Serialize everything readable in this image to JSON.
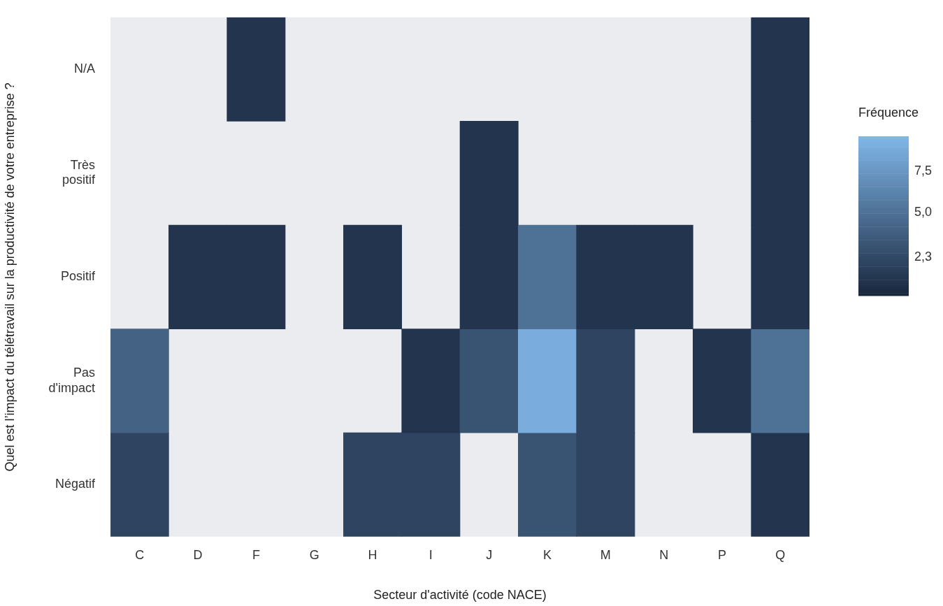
{
  "chart_data": {
    "type": "heatmap",
    "xlabel": "Secteur d'activité (code NACE)",
    "ylabel": "Quel est l’impact du télétravail sur la productivité de votre entreprise ?",
    "legend_title": "Fréquence",
    "categories": [
      "C",
      "D",
      "F",
      "G",
      "H",
      "I",
      "J",
      "K",
      "M",
      "N",
      "P",
      "Q"
    ],
    "y_categories": [
      "N/A",
      "Très positif",
      "Positif",
      "Pas d'impact",
      "Négatif"
    ],
    "cells": [
      [
        null,
        null,
        1,
        null,
        null,
        null,
        null,
        null,
        null,
        null,
        null,
        1
      ],
      [
        null,
        null,
        null,
        null,
        null,
        null,
        1,
        null,
        null,
        null,
        null,
        1
      ],
      [
        null,
        1,
        1,
        null,
        1,
        null,
        1,
        5,
        1,
        1,
        null,
        1
      ],
      [
        4,
        null,
        null,
        null,
        null,
        1,
        3,
        9,
        2,
        null,
        1,
        5
      ],
      [
        2,
        null,
        null,
        null,
        2,
        2,
        null,
        3,
        2,
        null,
        null,
        1
      ]
    ],
    "clim": [
      0,
      9.6
    ],
    "cticks": [
      {
        "value": 2.3,
        "label": "2,3"
      },
      {
        "value": 5,
        "label": "5,0"
      },
      {
        "value": 7.5,
        "label": "7,5"
      }
    ]
  }
}
